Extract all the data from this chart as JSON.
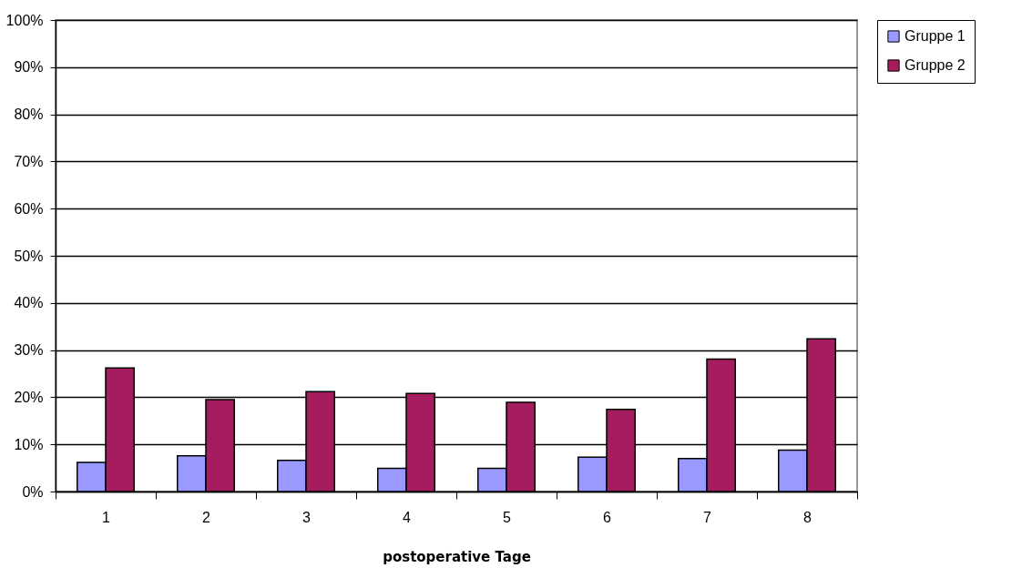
{
  "chart_data": {
    "type": "bar",
    "xlabel": "postoperative Tage",
    "categories": [
      "1",
      "2",
      "3",
      "4",
      "5",
      "6",
      "7",
      "8"
    ],
    "series": [
      {
        "name": "Gruppe 1",
        "color": "#9999ff",
        "values": [
          6.2,
          7.6,
          6.6,
          4.9,
          4.9,
          7.3,
          7.0,
          8.8
        ]
      },
      {
        "name": "Gruppe 2",
        "color": "#a51c5f",
        "values": [
          26.2,
          19.5,
          21.2,
          20.8,
          18.9,
          17.4,
          28.1,
          32.4
        ]
      }
    ],
    "ylim": [
      0,
      100
    ],
    "yticks": [
      {
        "value": 0,
        "label": "0%"
      },
      {
        "value": 10,
        "label": "10%"
      },
      {
        "value": 20,
        "label": "20%"
      },
      {
        "value": 30,
        "label": "30%"
      },
      {
        "value": 40,
        "label": "40%"
      },
      {
        "value": 50,
        "label": "50%"
      },
      {
        "value": 60,
        "label": "60%"
      },
      {
        "value": 70,
        "label": "70%"
      },
      {
        "value": 80,
        "label": "80%"
      },
      {
        "value": 90,
        "label": "90%"
      },
      {
        "value": 100,
        "label": "100%"
      }
    ],
    "grid": "y",
    "legend": "right"
  }
}
